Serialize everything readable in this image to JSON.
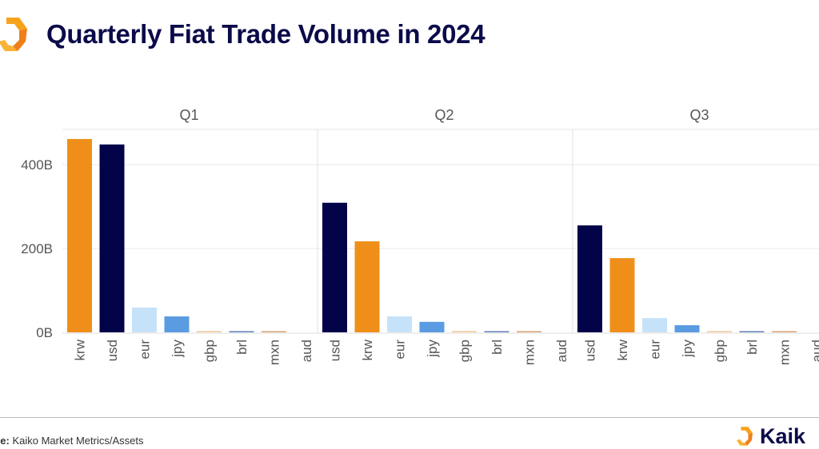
{
  "header": {
    "title": "Quarterly Fiat Trade Volume in 2024",
    "logo_icon": "kaiko-logo-icon"
  },
  "footer": {
    "source_label": "rce:",
    "source_text": " Kaiko Market Metrics/Assets",
    "brand_text": "Kaik"
  },
  "colors": {
    "krw": "#ef8f1a",
    "usd": "#03034a",
    "eur": "#c6e2f8",
    "jpy": "#5a9be2",
    "gbp": "#f2c89b",
    "brl": "#5f7fb8",
    "mxn": "#d9a173",
    "aud": "#f5f5f5",
    "title": "#0b0b4a",
    "grid": "#e8e8e8"
  },
  "chart_data": {
    "type": "bar",
    "title": "Quarterly Fiat Trade Volume in 2024",
    "xlabel": "",
    "ylabel": "",
    "ylim": [
      0,
      480
    ],
    "yunit": "B",
    "yticks": [
      {
        "value": 0,
        "label": "0B"
      },
      {
        "value": 200,
        "label": "200B"
      },
      {
        "value": 400,
        "label": "400B"
      }
    ],
    "grid": true,
    "legend": "none",
    "panels": [
      {
        "label": "Q1",
        "categories": [
          "krw",
          "usd",
          "eur",
          "jpy",
          "gbp",
          "brl",
          "mxn",
          "aud"
        ],
        "values": [
          461,
          448,
          59,
          38,
          3,
          1,
          1.5,
          0
        ]
      },
      {
        "label": "Q2",
        "categories": [
          "usd",
          "krw",
          "eur",
          "jpy",
          "gbp",
          "brl",
          "mxn",
          "aud"
        ],
        "values": [
          309,
          217,
          38,
          25,
          3,
          1,
          1.5,
          0
        ]
      },
      {
        "label": "Q3",
        "categories": [
          "usd",
          "krw",
          "eur",
          "jpy",
          "gbp",
          "brl",
          "mxn",
          "aud"
        ],
        "values": [
          255,
          177,
          34,
          17,
          3,
          1,
          1.5,
          0
        ]
      }
    ]
  }
}
